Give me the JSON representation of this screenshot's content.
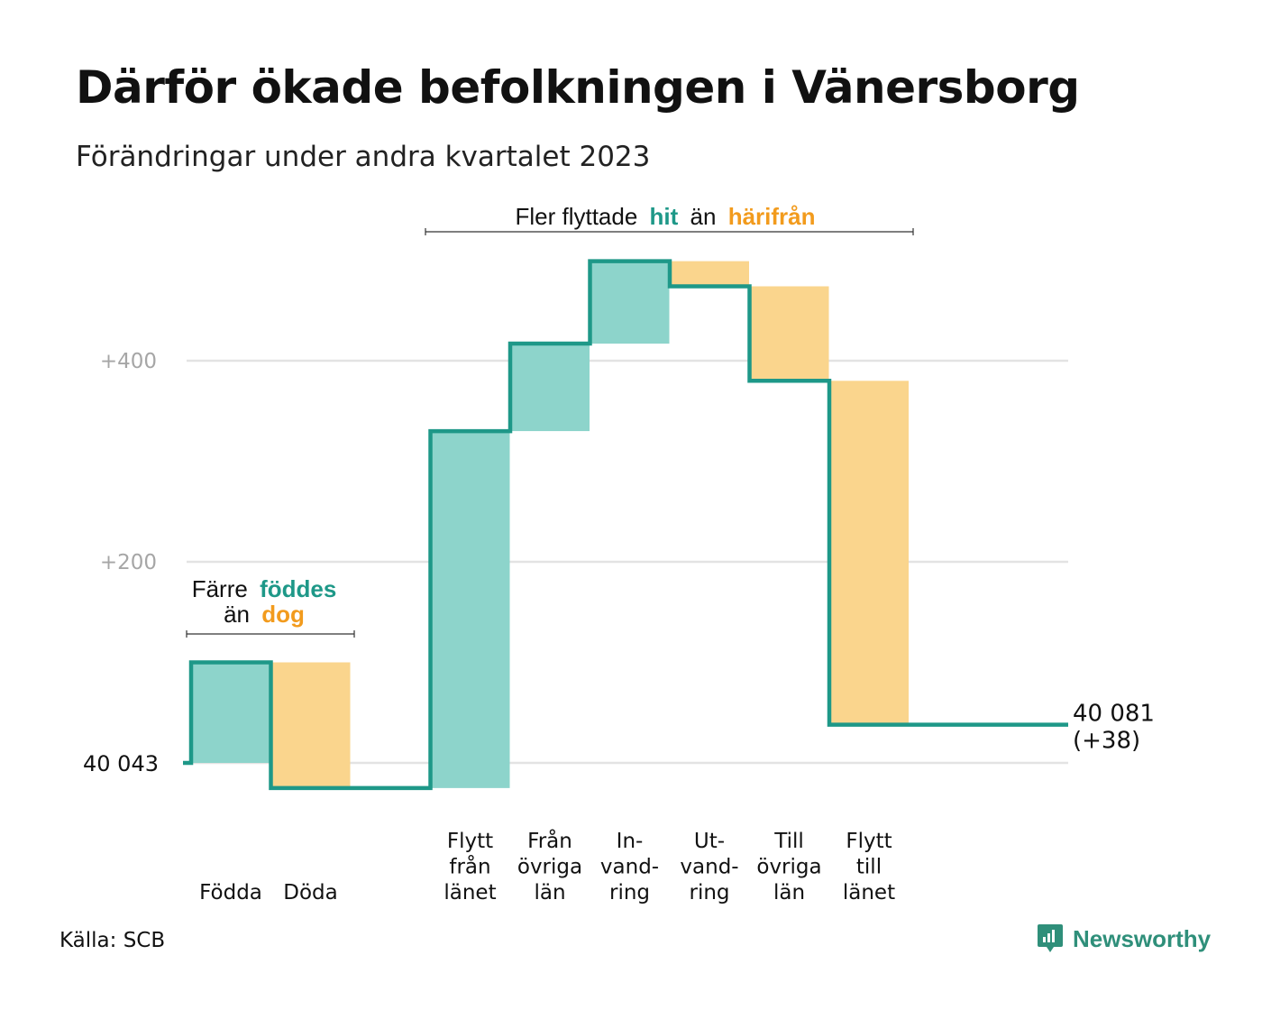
{
  "title": "Därför ökade befolkningen i Vänersborg",
  "subtitle": "Förändringar under andra kvartalet 2023",
  "source": "Källa: SCB",
  "brand": "Newsworthy",
  "colors": {
    "increase_fill": "#8dd4cb",
    "decrease_fill": "#fad58d",
    "line": "#1e9888",
    "teal_text": "#1e9888",
    "orange_text": "#f29b1d",
    "grid": "#e3e3e3",
    "tick_text": "#a6a6a6"
  },
  "annotations": {
    "birth": {
      "line1_prefix": "Färre",
      "line1_highlight": "föddes",
      "line2_prefix": "än",
      "line2_highlight": "dog"
    },
    "move": {
      "prefix": "Fler flyttade",
      "highlight1": "hit",
      "middle": "än",
      "highlight2": "härifrån"
    }
  },
  "chart_data": {
    "type": "waterfall",
    "y_ticks": [
      {
        "value": 0,
        "label": ""
      },
      {
        "value": 200,
        "label": "+200"
      },
      {
        "value": 400,
        "label": "+400"
      }
    ],
    "ylim": [
      -60,
      520
    ],
    "start_label": "40  043",
    "end_label": [
      "40 081",
      "(+38)"
    ],
    "end_value": 38,
    "steps": [
      {
        "label": [
          "Födda"
        ],
        "change": 100,
        "kind": "increase"
      },
      {
        "label": [
          "Döda"
        ],
        "change": -125,
        "kind": "decrease"
      },
      {
        "label": [],
        "change": 0,
        "kind": "gap"
      },
      {
        "label": [
          "Flytt",
          "från",
          "länet"
        ],
        "change": 355,
        "kind": "increase"
      },
      {
        "label": [
          "Från",
          "övriga",
          "län"
        ],
        "change": 87,
        "kind": "increase"
      },
      {
        "label": [
          "In-",
          "vand-",
          "ring"
        ],
        "change": 82,
        "kind": "increase"
      },
      {
        "label": [
          "Ut-",
          "vand-",
          "ring"
        ],
        "change": -25,
        "kind": "decrease"
      },
      {
        "label": [
          "Till",
          "övriga",
          "län"
        ],
        "change": -94,
        "kind": "decrease"
      },
      {
        "label": [
          "Flytt",
          "till",
          "länet"
        ],
        "change": -342,
        "kind": "decrease"
      }
    ]
  }
}
